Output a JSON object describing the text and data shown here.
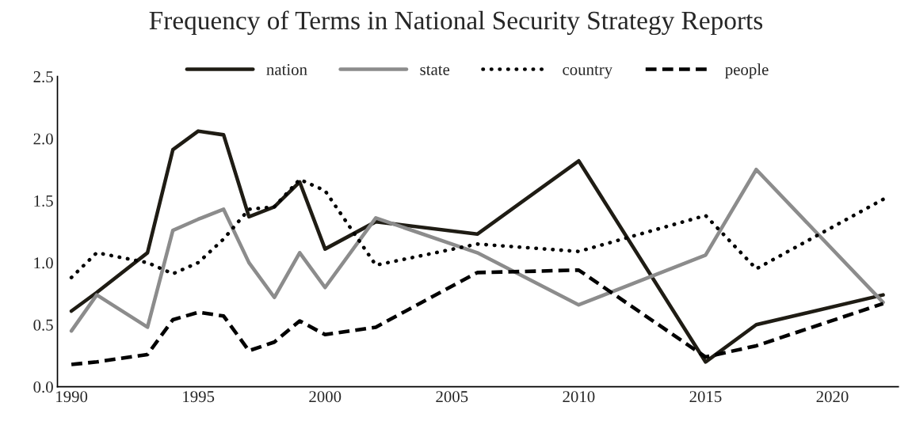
{
  "chart_data": {
    "type": "line",
    "title": "Frequency of Terms in National Security Strategy Reports",
    "x": [
      1990,
      1991,
      1993,
      1994,
      1995,
      1996,
      1997,
      1998,
      1999,
      2000,
      2002,
      2006,
      2010,
      2015,
      2017,
      2022
    ],
    "series": [
      {
        "name": "nation",
        "color": "#1f1c14",
        "line_style": "solid",
        "values": [
          0.61,
          0.76,
          1.08,
          1.91,
          2.06,
          2.03,
          1.37,
          1.45,
          1.65,
          1.11,
          1.33,
          1.23,
          1.82,
          0.2,
          0.5,
          0.74
        ]
      },
      {
        "name": "state",
        "color": "#8c8c8c",
        "line_style": "solid",
        "values": [
          0.45,
          0.74,
          0.48,
          1.26,
          1.35,
          1.43,
          1.0,
          0.72,
          1.08,
          0.8,
          1.36,
          1.08,
          0.66,
          1.06,
          1.75,
          0.68
        ]
      },
      {
        "name": "country",
        "color": "#000000",
        "line_style": "dotted",
        "values": [
          0.88,
          1.08,
          1.0,
          0.91,
          1.0,
          1.19,
          1.43,
          1.45,
          1.67,
          1.58,
          0.98,
          1.15,
          1.09,
          1.38,
          0.95,
          1.51
        ]
      },
      {
        "name": "people",
        "color": "#000000",
        "line_style": "dashed",
        "values": [
          0.18,
          0.2,
          0.26,
          0.54,
          0.6,
          0.57,
          0.29,
          0.36,
          0.53,
          0.42,
          0.48,
          0.92,
          0.94,
          0.24,
          0.33,
          0.67
        ]
      }
    ],
    "xlim": [
      1989.45,
      2022.6
    ],
    "xticks": [
      1990,
      1995,
      2000,
      2005,
      2010,
      2015,
      2020
    ],
    "ylim": [
      0,
      2.5
    ],
    "yticks": [
      {
        "value": 0,
        "label": "0.0"
      },
      {
        "value": 0.5,
        "label": "0.5"
      },
      {
        "value": 1,
        "label": "1.0"
      },
      {
        "value": 1.5,
        "label": "1.5"
      },
      {
        "value": 2,
        "label": "2.0"
      },
      {
        "value": 2.5,
        "label": "2.5"
      }
    ],
    "grid": false,
    "legend": "top",
    "marker": "none"
  }
}
